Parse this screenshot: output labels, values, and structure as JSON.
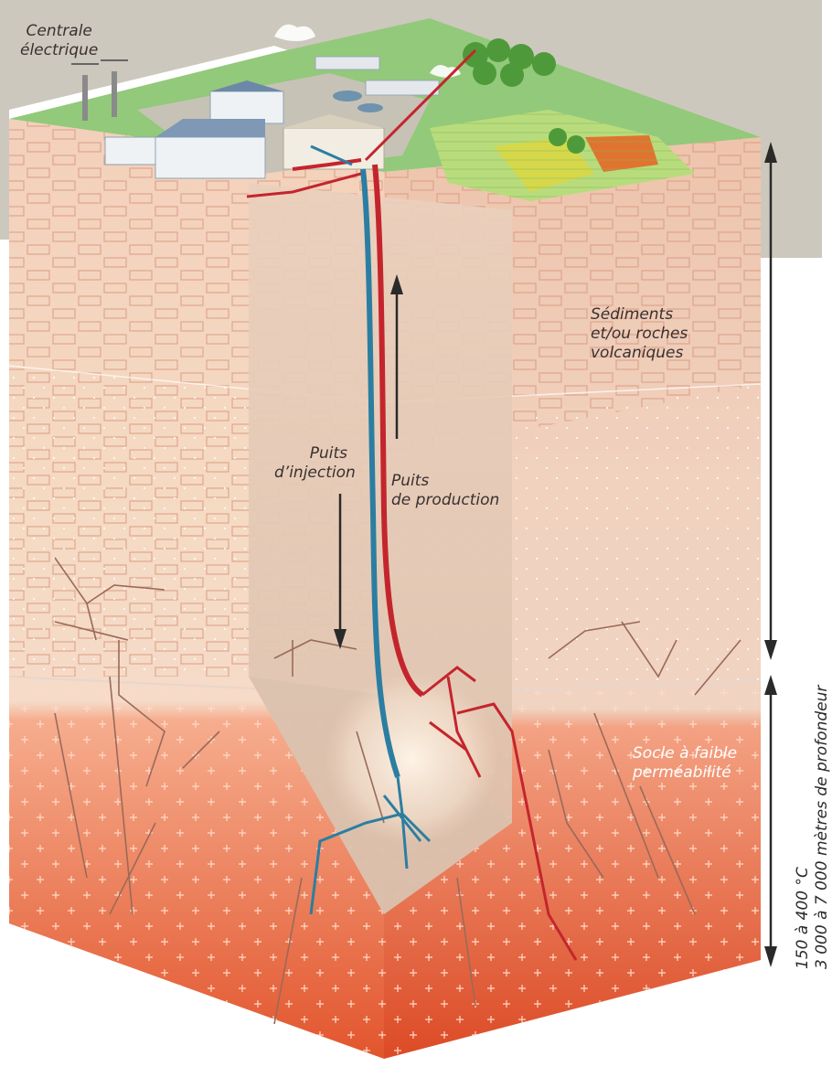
{
  "labels": {
    "power_plant": [
      "Centrale",
      "électrique"
    ],
    "sediments": [
      "Sédiments",
      "et/ou roches",
      "volcaniques"
    ],
    "injection_well": [
      "Puits",
      "d’injection"
    ],
    "production_well": [
      "Puits",
      "de production"
    ],
    "basement": [
      "Socle à faible",
      "perméabilité"
    ],
    "temperature": "150 à 400 °C",
    "depth": "3 000 à 7 000 mètres de profondeur"
  },
  "colors": {
    "injection": "#2b7ea1",
    "production": "#c4252d",
    "background_band": "#cdc8bd",
    "grass": "#93c97a",
    "brick": "#f0c8b0",
    "basement_top": "#f2a383",
    "basement_bottom": "#e0502a"
  }
}
